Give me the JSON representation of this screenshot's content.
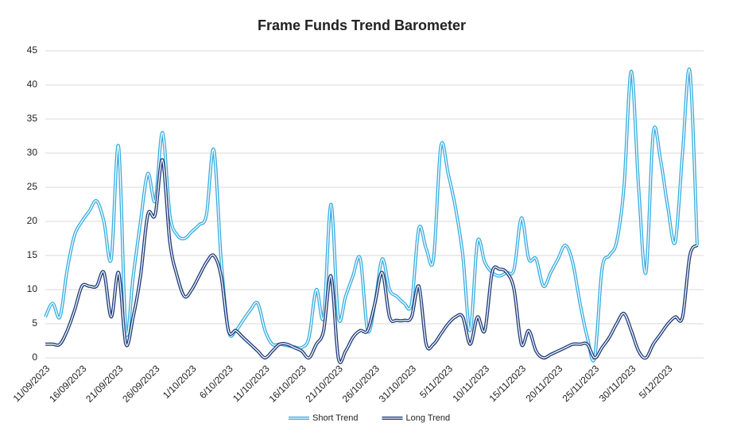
{
  "chart_data": {
    "type": "line",
    "title": "Frame Funds Trend Barometer",
    "categories": [
      "11/09/2023",
      null,
      null,
      null,
      null,
      "16/09/2023",
      null,
      null,
      null,
      null,
      "21/09/2023",
      null,
      null,
      null,
      null,
      "26/09/2023",
      null,
      null,
      null,
      null,
      "1/10/2023",
      null,
      null,
      null,
      null,
      "6/10/2023",
      null,
      null,
      null,
      null,
      "11/10/2023",
      null,
      null,
      null,
      null,
      "16/10/2023",
      null,
      null,
      null,
      null,
      "21/10/2023",
      null,
      null,
      null,
      null,
      "26/10/2023",
      null,
      null,
      null,
      null,
      "31/10/2023",
      null,
      null,
      null,
      null,
      "5/11/2023",
      null,
      null,
      null,
      null,
      "10/11/2023",
      null,
      null,
      null,
      null,
      "15/11/2023",
      null,
      null,
      null,
      null,
      "20/11/2023",
      null,
      null,
      null,
      null,
      "25/11/2023",
      null,
      null,
      null,
      null,
      "30/11/2023",
      null,
      null,
      null,
      null,
      "5/12/2023",
      null,
      null,
      null,
      null
    ],
    "series": [
      {
        "name": "Short Trend",
        "color": "#3aaee0",
        "values": [
          6,
          8,
          6,
          13,
          18,
          20,
          21.5,
          23,
          20,
          14.5,
          31,
          4,
          12,
          20,
          27,
          23,
          33,
          21,
          18,
          17.5,
          18.5,
          19.5,
          21,
          30.5,
          14.5,
          4,
          4,
          5.5,
          7,
          8,
          4,
          2,
          2,
          1.8,
          1.6,
          1.5,
          3,
          10,
          6,
          22.5,
          6,
          9,
          12,
          14.5,
          4,
          8,
          14.5,
          10,
          9,
          8,
          8,
          19,
          16,
          14.5,
          31,
          27,
          22,
          15,
          4,
          17,
          14,
          12.5,
          12,
          12.5,
          13,
          20.5,
          14.5,
          14.5,
          10.5,
          12.5,
          14.5,
          16.5,
          14,
          8,
          3,
          0,
          13,
          15,
          17,
          25,
          42,
          25,
          12.5,
          33,
          29,
          22,
          17,
          30,
          42,
          16.5
        ]
      },
      {
        "name": "Long Trend",
        "color": "#1f3d7a",
        "values": [
          2,
          2,
          2,
          4,
          7,
          10.5,
          10.5,
          10.5,
          12.5,
          6,
          12.5,
          2,
          6,
          12,
          21,
          21,
          29,
          17,
          12,
          9,
          10,
          12,
          14,
          15,
          12,
          4,
          4,
          3,
          2,
          1,
          0,
          1,
          2,
          2,
          1.5,
          1,
          0,
          2,
          4,
          12,
          0,
          1,
          3,
          4,
          4,
          8,
          12.5,
          6,
          5.5,
          5.5,
          6,
          10.5,
          2,
          2,
          3.5,
          5,
          6,
          6,
          2,
          6,
          4,
          12.5,
          13,
          12.5,
          10,
          2,
          4,
          1,
          0,
          0.5,
          1,
          1.5,
          2,
          2,
          2,
          0,
          1.5,
          3,
          5,
          6.5,
          4,
          1,
          0,
          2,
          3.5,
          5,
          6,
          6,
          15,
          16.5
        ]
      }
    ],
    "ylim": [
      0,
      45
    ],
    "yticks": [
      0,
      5,
      10,
      15,
      20,
      25,
      30,
      35,
      40,
      45
    ],
    "grid": true,
    "legend": "bottom"
  }
}
